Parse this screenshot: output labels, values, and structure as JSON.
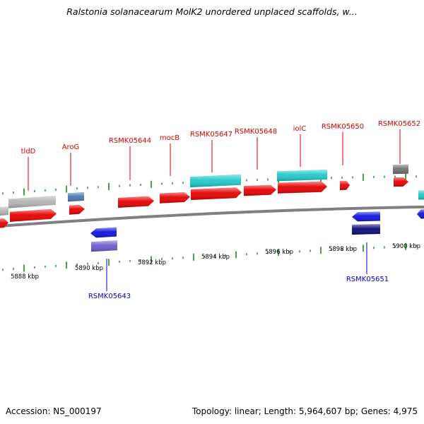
{
  "title": "Ralstonia solanacearum MolK2 unordered unplaced scaffolds, w...",
  "colors": {
    "label_upper": "#d80000",
    "label_lower": "#0000c8",
    "tick": "#1a8a1a",
    "backbone": "#808080",
    "gene_red": "#e60000",
    "gene_cyan": "#20c8c8",
    "gene_gray": "#b4b4b4",
    "gene_darkgray": "#707070",
    "gene_steelblue": "#4a78b0",
    "gene_blue": "#1010e0",
    "gene_navy": "#0a0a78",
    "gene_violet": "#6a5acd"
  },
  "kbp_labels": [
    "5888 kbp",
    "5890 kbp",
    "5892 kbp",
    "5894 kbp",
    "5896 kbp",
    "5898 kbp",
    "5900 kbp"
  ],
  "upper_labels": [
    "tldD",
    "AroG",
    "RSMK05644",
    "mocB",
    "RSMK05647",
    "RSMK05648",
    "iolC",
    "RSMK05650",
    "RSMK05652"
  ],
  "lower_labels": [
    "RSMK05643",
    "RSMK05651"
  ],
  "footer": {
    "accession": "Accession: NS_000197",
    "summary": "Topology: linear; Length: 5,964,607 bp; Genes: 4,975"
  }
}
